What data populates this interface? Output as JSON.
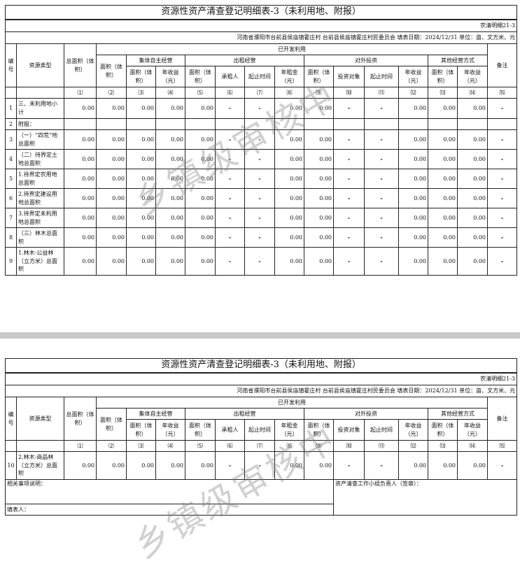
{
  "title": "资源性资产清查登记明细表-3（未利用地、附报）",
  "form_code": "农清明细21-3",
  "info": "河南省濮阳市台前县侯庙镇霍庄村  台前县侯庙镇霍庄村民委员会  填表日期：2024/12/31  单位：亩、文方米、元",
  "watermark": "乡镇级审核中",
  "headers": {
    "no": "编号",
    "type": "资源类型",
    "total": "总面积（体积）",
    "developed": "已开发利用",
    "area": "面积（体积）",
    "remark": "备注",
    "groups": [
      "集体自主经营",
      "出租经营",
      "对外投资",
      "其他经营方式"
    ],
    "sub": [
      "面积（体积）",
      "年收益（元）",
      "面积（体积）",
      "承租人",
      "起止时间",
      "年租金（元）",
      "面积（体积）",
      "投资对象",
      "起止时间",
      "年收益（元）",
      "面积（体积）",
      "年收益（元）"
    ],
    "col_numbers": [
      "⑴",
      "⑵",
      "⑶",
      "⑷",
      "⑸",
      "⑹",
      "⑺",
      "⑻",
      "⑼",
      "⑽",
      "⑾",
      "⑿",
      "⒀",
      "⒁",
      "⒂"
    ]
  },
  "page1_rows": [
    {
      "no": "1",
      "type": "三、未利用地小计",
      "values": [
        "0.00",
        "0.00",
        "0.00",
        "0.00",
        "0.00",
        "-",
        "-",
        "0.00",
        "0.00",
        "-",
        "-",
        "0.00",
        "0.00",
        "0.00",
        "-"
      ]
    },
    {
      "no": "2",
      "type": "附报：",
      "values": [
        "",
        "",
        "",
        "",
        "",
        "",
        "",
        "",
        "",
        "",
        "",
        "",
        "",
        "",
        ""
      ]
    },
    {
      "no": "3",
      "type": "（一）“四荒”地总面积",
      "values": [
        "0.00",
        "0.00",
        "0.00",
        "0.00",
        "0.00",
        "-",
        "-",
        "0.00",
        "0.00",
        "-",
        "-",
        "0.00",
        "0.00",
        "0.00",
        "-"
      ]
    },
    {
      "no": "4",
      "type": "（二）待界定土地总面积",
      "values": [
        "0.00",
        "0.00",
        "0.00",
        "0.00",
        "0.00",
        "-",
        "-",
        "0.00",
        "0.00",
        "-",
        "-",
        "0.00",
        "0.00",
        "0.00",
        "-"
      ]
    },
    {
      "no": "5",
      "type": "1.待界定农用地总面积",
      "values": [
        "0.00",
        "0.00",
        "0.00",
        "0.00",
        "0.00",
        "-",
        "-",
        "0.00",
        "0.00",
        "-",
        "-",
        "0.00",
        "0.00",
        "0.00",
        "-"
      ]
    },
    {
      "no": "6",
      "type": "2.待界定建设用地总面积",
      "values": [
        "0.00",
        "0.00",
        "0.00",
        "0.00",
        "0.00",
        "-",
        "-",
        "0.00",
        "0.00",
        "-",
        "-",
        "0.00",
        "0.00",
        "0.00",
        "-"
      ]
    },
    {
      "no": "7",
      "type": "3.待界定未利用地总面积",
      "values": [
        "0.00",
        "0.00",
        "0.00",
        "0.00",
        "0.00",
        "-",
        "-",
        "0.00",
        "0.00",
        "-",
        "-",
        "0.00",
        "0.00",
        "0.00",
        "-"
      ]
    },
    {
      "no": "8",
      "type": "（三）林木总面积",
      "values": [
        "0.00",
        "0.00",
        "0.00",
        "0.00",
        "0.00",
        "-",
        "-",
        "0.00",
        "0.00",
        "-",
        "-",
        "0.00",
        "0.00",
        "0.00",
        "-"
      ]
    },
    {
      "no": "9",
      "type": "1.林木-公益林（立方米）总面积",
      "values": [
        "0.00",
        "0.00",
        "0.00",
        "0.00",
        "0.00",
        "-",
        "-",
        "0.00",
        "0.00",
        "-",
        "-",
        "0.00",
        "0.00",
        "0.00",
        "-"
      ]
    }
  ],
  "page2_rows": [
    {
      "no": "10",
      "type": "2.林木-商品林（立方米）总面积",
      "values": [
        "0.00",
        "0.00",
        "0.00",
        "0.00",
        "0.00",
        "-",
        "-",
        "0.00",
        "0.00",
        "-",
        "-",
        "0.00",
        "0.00",
        "0.00",
        "-"
      ]
    }
  ],
  "footer": {
    "notes_label": "相关事项说明：",
    "filler_label": "填表人：",
    "leader_label": "资产清查工作小组负责人（签章）："
  }
}
